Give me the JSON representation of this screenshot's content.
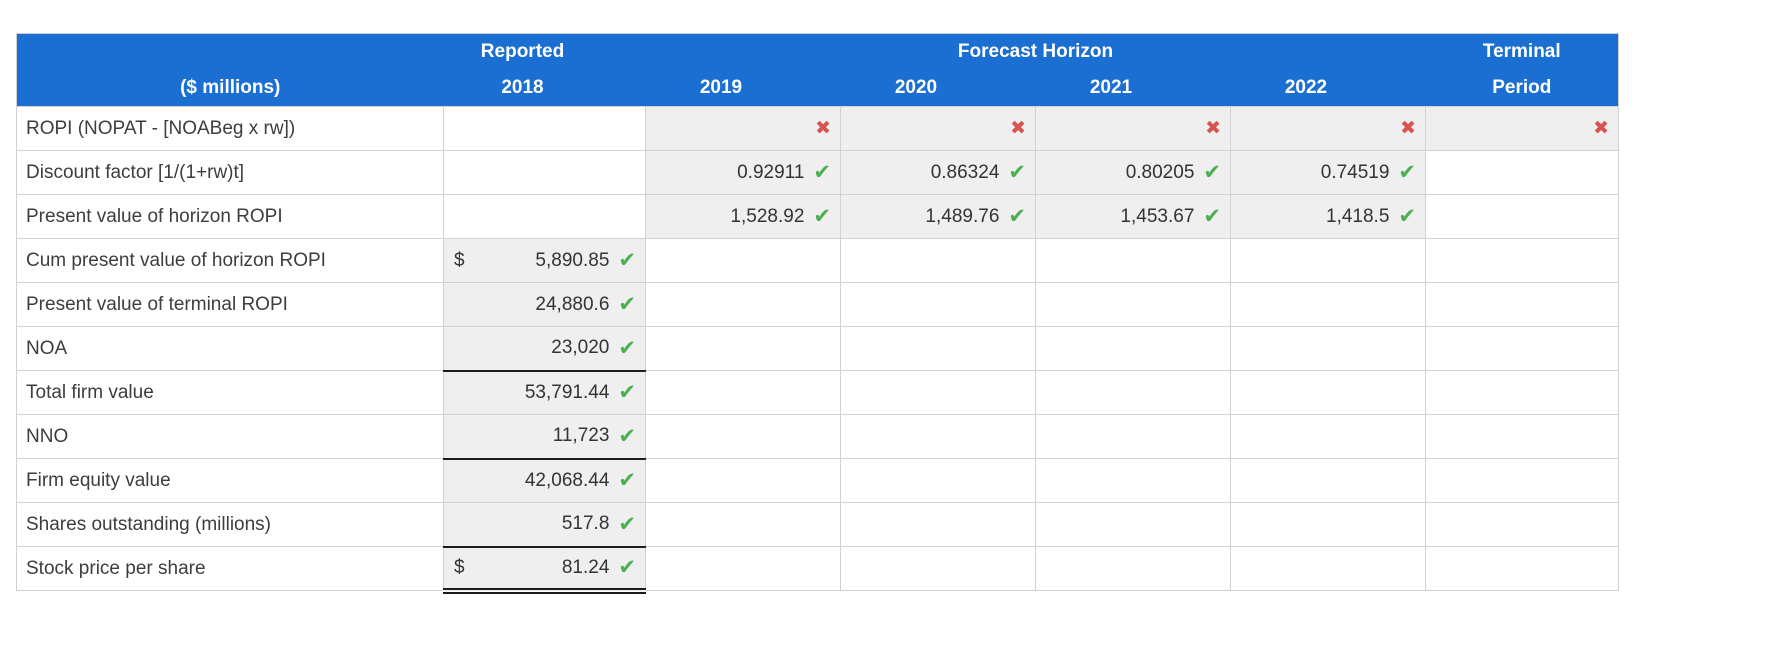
{
  "colors": {
    "header_bg": "#1b6fd2",
    "header_text": "#ffffff",
    "answer_cell_bg": "#efefef",
    "grid_line": "#d2d2d2",
    "accounting_line": "#1c1c1c",
    "correct_green": "#4caf50",
    "incorrect_red": "#d9534f"
  },
  "glyphs": {
    "correct": "✔",
    "incorrect": "✖"
  },
  "table": {
    "title_row": {
      "reported": "Reported",
      "forecast_horizon": "Forecast Horizon",
      "terminal": "Terminal"
    },
    "year_row": {
      "label_col": "($ millions)",
      "y2018": "2018",
      "y2019": "2019",
      "y2020": "2020",
      "y2021": "2021",
      "y2022": "2022",
      "terminal": "Period"
    },
    "rows": [
      {
        "label": "ROPI (NOPAT - [NOABeg x rw])",
        "marks": {
          "y2019": "incorrect",
          "y2020": "incorrect",
          "y2021": "incorrect",
          "y2022": "incorrect",
          "terminal": "incorrect"
        }
      },
      {
        "label": "Discount factor [1/(1+rw)t]",
        "values": {
          "y2019": "0.92911",
          "y2020": "0.86324",
          "y2021": "0.80205",
          "y2022": "0.74519"
        },
        "marks": {
          "y2019": "correct",
          "y2020": "correct",
          "y2021": "correct",
          "y2022": "correct"
        }
      },
      {
        "label": "Present value of horizon ROPI",
        "values": {
          "y2019": "1,528.92",
          "y2020": "1,489.76",
          "y2021": "1,453.67",
          "y2022": "1,418.5"
        },
        "marks": {
          "y2019": "correct",
          "y2020": "correct",
          "y2021": "correct",
          "y2022": "correct"
        }
      },
      {
        "label": "Cum present value of horizon ROPI",
        "currency": "$",
        "values": {
          "y2018": "5,890.85"
        },
        "marks": {
          "y2018": "correct"
        }
      },
      {
        "label": "Present value of terminal ROPI",
        "values": {
          "y2018": "24,880.6"
        },
        "marks": {
          "y2018": "correct"
        }
      },
      {
        "label": "NOA",
        "values": {
          "y2018": "23,020"
        },
        "marks": {
          "y2018": "correct"
        }
      },
      {
        "label": "Total firm value",
        "values": {
          "y2018": "53,791.44"
        },
        "marks": {
          "y2018": "correct"
        }
      },
      {
        "label": "NNO",
        "values": {
          "y2018": "11,723"
        },
        "marks": {
          "y2018": "correct"
        }
      },
      {
        "label": "Firm equity value",
        "values": {
          "y2018": "42,068.44"
        },
        "marks": {
          "y2018": "correct"
        }
      },
      {
        "label": "Shares outstanding (millions)",
        "values": {
          "y2018": "517.8"
        },
        "marks": {
          "y2018": "correct"
        }
      },
      {
        "label": "Stock price per share",
        "currency": "$",
        "values": {
          "y2018": "81.24"
        },
        "marks": {
          "y2018": "correct"
        }
      }
    ]
  }
}
